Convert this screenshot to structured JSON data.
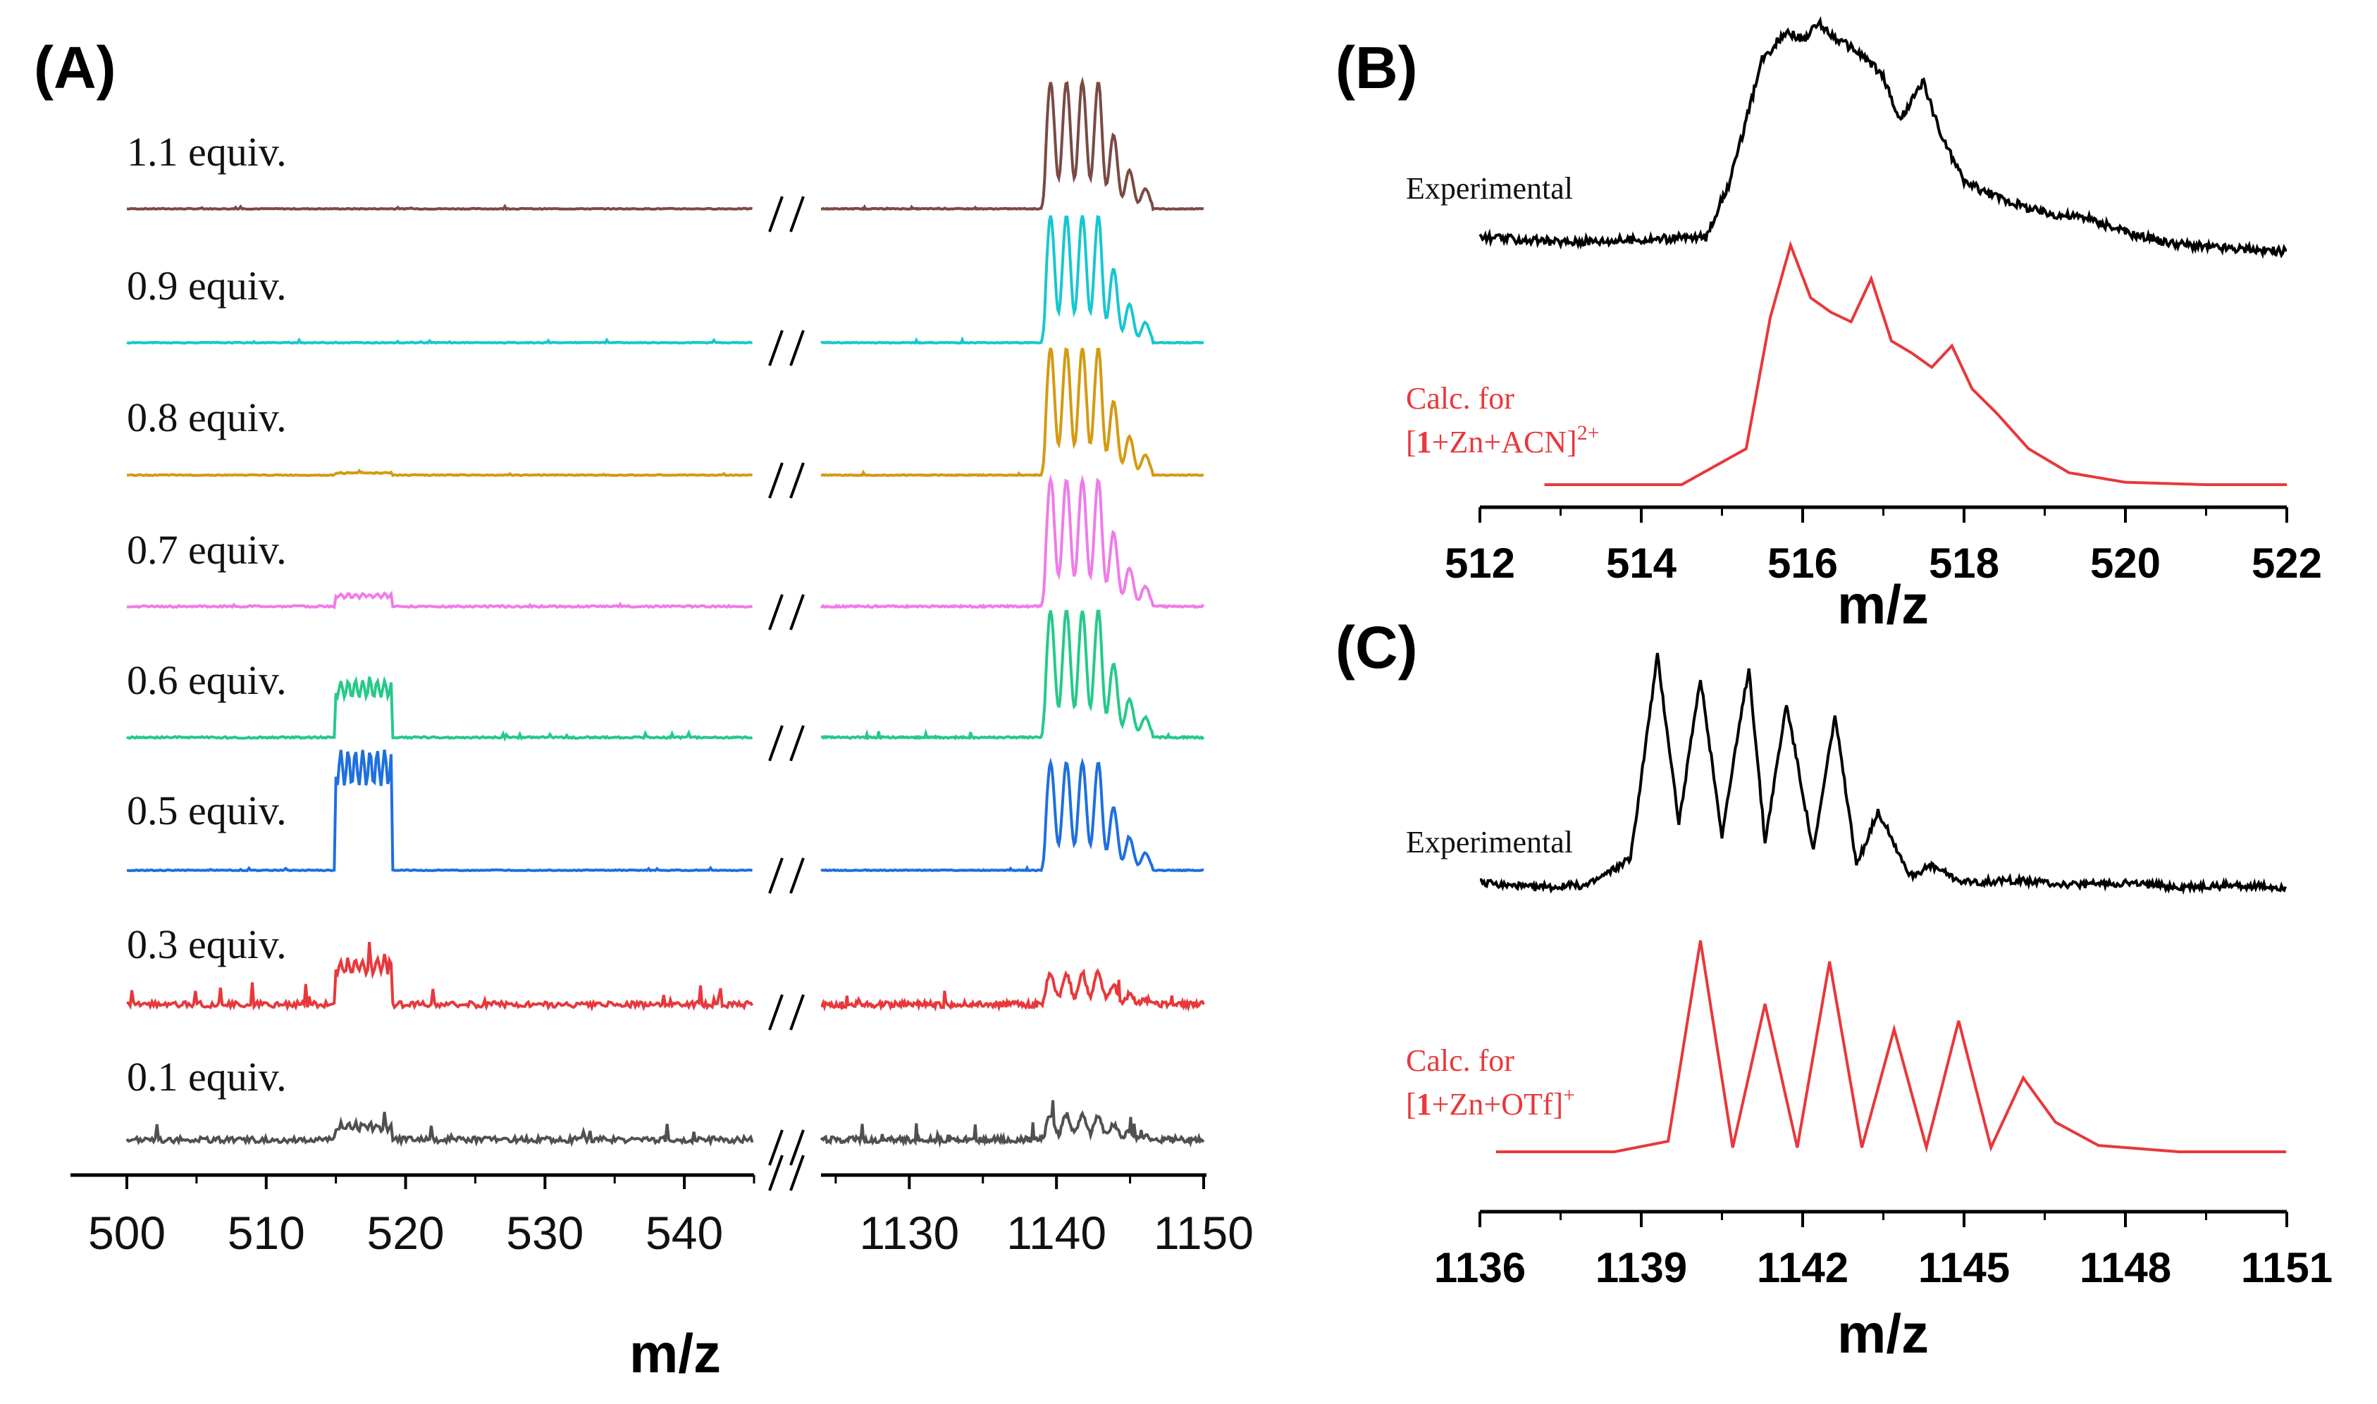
{
  "panels": {
    "A": {
      "label": "(A)",
      "xlabel": "m/z",
      "left_ticks": [
        "500",
        "510",
        "520",
        "530",
        "540"
      ],
      "right_ticks": [
        "1130",
        "1140",
        "1150"
      ]
    },
    "B": {
      "label": "(B)",
      "xlabel": "m/z",
      "ticks": [
        "512",
        "514",
        "516",
        "518",
        "520",
        "522"
      ],
      "trace1_label": "Experimental",
      "trace2_label_line1": "Calc.  for",
      "trace2_label_line2": {
        "pre": "[",
        "bold": "1",
        "mid": "+Zn+ACN]",
        "sup": "2+"
      }
    },
    "C": {
      "label": "(C)",
      "xlabel": "m/z",
      "ticks": [
        "1136",
        "1139",
        "1142",
        "1145",
        "1148",
        "1151"
      ],
      "trace1_label": "Experimental",
      "trace2_label_line1": "Calc.  for",
      "trace2_label_line2": {
        "pre": "[",
        "bold": "1",
        "mid": "+Zn+OTf]",
        "sup": "+"
      }
    }
  },
  "colors": {
    "experimental": "#000000",
    "calculated": "#e8383b"
  },
  "chart_data": [
    {
      "type": "line",
      "panel": "A",
      "xlabel": "m/z",
      "x_segments": [
        [
          500,
          545
        ],
        [
          1124,
          1150
        ]
      ],
      "axis_break": true,
      "series": [
        {
          "name": "1.1 equiv.",
          "color": "#7a4a44",
          "peak_516_rel": 0.0,
          "peak_1141_rel": 1.0
        },
        {
          "name": "0.9 equiv.",
          "color": "#17c7cf",
          "peak_516_rel": 0.0,
          "peak_1141_rel": 1.0
        },
        {
          "name": "0.8 equiv.",
          "color": "#d49a12",
          "peak_516_rel": 0.02,
          "peak_1141_rel": 1.0
        },
        {
          "name": "0.7 equiv.",
          "color": "#f07be8",
          "peak_516_rel": 0.1,
          "peak_1141_rel": 1.0
        },
        {
          "name": "0.6 equiv.",
          "color": "#26c98a",
          "peak_516_rel": 0.45,
          "peak_1141_rel": 1.0
        },
        {
          "name": "0.5 equiv.",
          "color": "#1e6fe0",
          "peak_516_rel": 0.95,
          "peak_1141_rel": 0.85
        },
        {
          "name": "0.3 equiv.",
          "color": "#e8383b",
          "peak_516_rel": 0.35,
          "peak_1141_rel": 0.25
        },
        {
          "name": "0.1 equiv.",
          "color": "#505050",
          "peak_516_rel": 0.12,
          "peak_1141_rel": 0.2
        }
      ]
    },
    {
      "type": "line",
      "panel": "B",
      "xlabel": "m/z",
      "xlim": [
        512,
        522
      ],
      "series": [
        {
          "name": "Experimental",
          "x": [
            512.0,
            513.0,
            514.0,
            514.8,
            515.1,
            515.5,
            515.8,
            516.0,
            516.2,
            516.4,
            516.6,
            516.8,
            517.0,
            517.2,
            517.5,
            517.7,
            518.0,
            518.3,
            518.7,
            519.0,
            519.5,
            520.0,
            520.5,
            521.0,
            522.0
          ],
          "y": [
            0.12,
            0.1,
            0.11,
            0.12,
            0.35,
            0.85,
            0.97,
            0.93,
            1.0,
            0.94,
            0.9,
            0.85,
            0.78,
            0.6,
            0.76,
            0.55,
            0.35,
            0.3,
            0.25,
            0.22,
            0.2,
            0.14,
            0.1,
            0.08,
            0.06
          ]
        },
        {
          "name": "Calc. for [1+Zn+ACN]2+",
          "x": [
            512.8,
            514.5,
            515.3,
            515.6,
            515.85,
            516.1,
            516.35,
            516.6,
            516.85,
            517.1,
            517.35,
            517.6,
            517.85,
            518.1,
            518.4,
            518.8,
            519.3,
            520.0,
            521.0,
            522.0
          ],
          "y": [
            0.0,
            0.0,
            0.15,
            0.7,
            1.0,
            0.78,
            0.72,
            0.68,
            0.86,
            0.6,
            0.55,
            0.49,
            0.58,
            0.4,
            0.3,
            0.15,
            0.05,
            0.01,
            0.0,
            0.0
          ]
        }
      ]
    },
    {
      "type": "line",
      "panel": "C",
      "xlabel": "m/z",
      "xlim": [
        1136,
        1151
      ],
      "series": [
        {
          "name": "Experimental",
          "x": [
            1136.0,
            1137.0,
            1138.0,
            1138.8,
            1139.3,
            1139.7,
            1140.1,
            1140.5,
            1141.0,
            1141.3,
            1141.7,
            1142.2,
            1142.6,
            1143.0,
            1143.4,
            1144.0,
            1144.4,
            1145.0,
            1146.0,
            1147.0,
            1148.0,
            1149.0,
            1150.0,
            1151.0
          ],
          "y": [
            0.05,
            0.03,
            0.04,
            0.15,
            1.0,
            0.3,
            0.9,
            0.25,
            0.95,
            0.22,
            0.8,
            0.18,
            0.75,
            0.12,
            0.35,
            0.08,
            0.12,
            0.05,
            0.06,
            0.04,
            0.05,
            0.03,
            0.04,
            0.03
          ]
        },
        {
          "name": "Calc. for [1+Zn+OTf]+",
          "x": [
            1136.3,
            1138.5,
            1139.5,
            1140.1,
            1140.7,
            1141.3,
            1141.9,
            1142.5,
            1143.1,
            1143.7,
            1144.3,
            1144.9,
            1145.5,
            1146.1,
            1146.7,
            1147.5,
            1149.0,
            1151.0
          ],
          "y": [
            0.0,
            0.0,
            0.05,
            1.0,
            0.02,
            0.7,
            0.02,
            0.9,
            0.02,
            0.58,
            0.02,
            0.62,
            0.02,
            0.35,
            0.14,
            0.03,
            0.0,
            0.0
          ]
        }
      ]
    }
  ]
}
